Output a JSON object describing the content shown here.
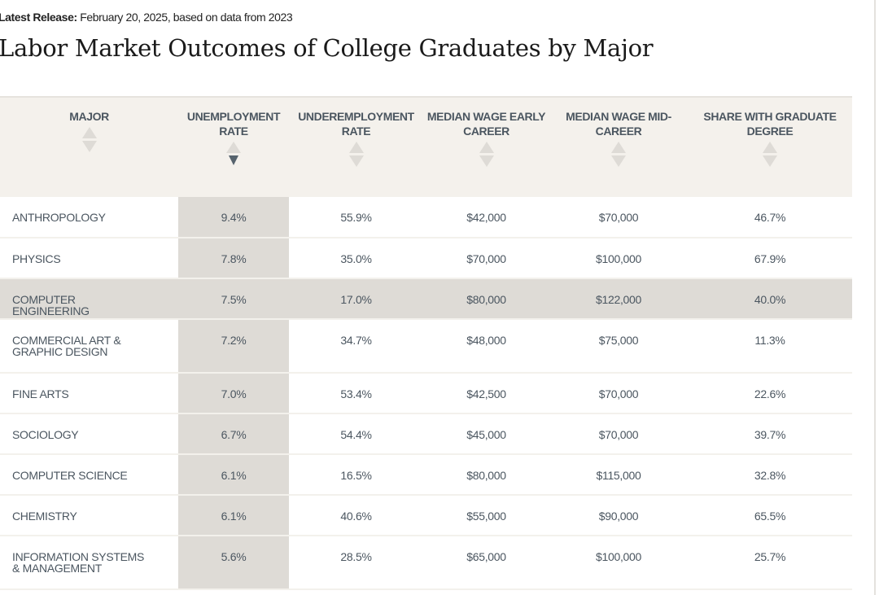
{
  "release": {
    "label": "Latest Release:",
    "text": " February 20, 2025, based on data from 2023"
  },
  "title": "Labor Market Outcomes of College Graduates by Major",
  "table": {
    "columns": [
      {
        "label": "MAJOR",
        "sort": "none"
      },
      {
        "label": "UNEMPLOYMENT RATE",
        "sort": "descending"
      },
      {
        "label": "UNDEREMPLOYMENT RATE",
        "sort": "none"
      },
      {
        "label": "MEDIAN WAGE EARLY CAREER",
        "sort": "none"
      },
      {
        "label": "MEDIAN WAGE MID-CAREER",
        "sort": "none"
      },
      {
        "label": "SHARE WITH GRADUATE DEGREE",
        "sort": "none"
      }
    ],
    "rows": [
      [
        "ANTHROPOLOGY",
        "9.4%",
        "55.9%",
        "$42,000",
        "$70,000",
        "46.7%"
      ],
      [
        "PHYSICS",
        "7.8%",
        "35.0%",
        "$70,000",
        "$100,000",
        "67.9%"
      ],
      [
        "COMPUTER ENGINEERING",
        "7.5%",
        "17.0%",
        "$80,000",
        "$122,000",
        "40.0%"
      ],
      [
        "COMMERCIAL ART & GRAPHIC DESIGN",
        "7.2%",
        "34.7%",
        "$48,000",
        "$75,000",
        "11.3%"
      ],
      [
        "FINE ARTS",
        "7.0%",
        "53.4%",
        "$42,500",
        "$70,000",
        "22.6%"
      ],
      [
        "SOCIOLOGY",
        "6.7%",
        "54.4%",
        "$45,000",
        "$70,000",
        "39.7%"
      ],
      [
        "COMPUTER SCIENCE",
        "6.1%",
        "16.5%",
        "$80,000",
        "$115,000",
        "32.8%"
      ],
      [
        "CHEMISTRY",
        "6.1%",
        "40.6%",
        "$55,000",
        "$90,000",
        "65.5%"
      ],
      [
        "INFORMATION SYSTEMS & MANAGEMENT",
        "5.6%",
        "28.5%",
        "$65,000",
        "$100,000",
        "25.7%"
      ]
    ],
    "highlighted_row": 2
  },
  "colors": {
    "header_bg": "#f4f1ec",
    "sorted_col_bg": "#dedbd6",
    "text": "#4b5660",
    "sort_active": "#56636d"
  }
}
